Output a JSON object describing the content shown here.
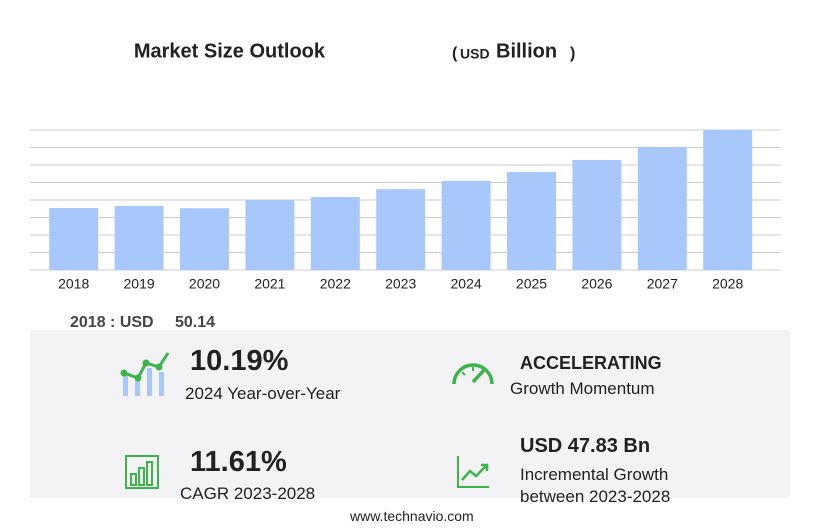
{
  "chart_data": {
    "type": "bar",
    "title": "Market Size Outlook",
    "unit_parts": [
      "(",
      "USD",
      "Billion",
      ")"
    ],
    "categories": [
      "2018",
      "2019",
      "2020",
      "2021",
      "2022",
      "2023",
      "2024",
      "2025",
      "2026",
      "2027",
      "2028"
    ],
    "values": [
      50.14,
      51.8,
      50.0,
      56.6,
      59.0,
      65.4,
      72.1,
      79.2,
      89.0,
      99.5,
      113.2
    ],
    "color": "#a8c8fc",
    "ylim": [
      0,
      113.2
    ],
    "grid": true,
    "grid_lines": 8
  },
  "summary": {
    "base_label": "2018 : USD",
    "base_value": "50.14",
    "kpis": [
      {
        "value": "10.19%",
        "label": "2024 Year-over-Year"
      },
      {
        "value": "ACCELERATING",
        "label": "Growth Momentum"
      },
      {
        "value": "11.61%",
        "label": "CAGR 2023-2028"
      },
      {
        "value": "USD 47.83 Bn",
        "label": "Incremental Growth",
        "label2": "between 2023-2028"
      }
    ]
  },
  "footer": "www.technavio.com"
}
